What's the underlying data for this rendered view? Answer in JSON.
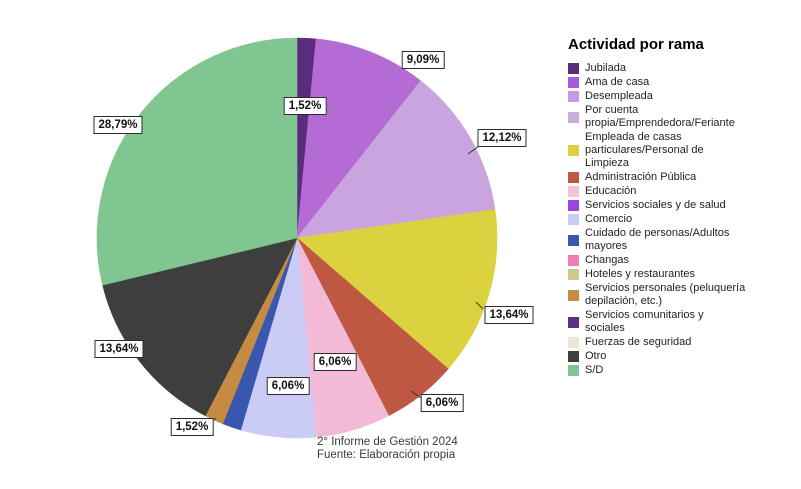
{
  "legend": {
    "title": "Actividad por rama",
    "items": [
      {
        "label": "Jubilada",
        "color": "#5B2C7E"
      },
      {
        "label": "Ama de casa",
        "color": "#A95BDB"
      },
      {
        "label": "Desempleada",
        "color": "#C49BE0"
      },
      {
        "label": "Por cuenta\npropia/Emprendedora/Feriante",
        "color": "#C9AEDC"
      },
      {
        "label": "Empleada de casas\nparticulares/Personal de\nLimpieza",
        "color": "#DCD13F"
      },
      {
        "label": "Administración Pública",
        "color": "#BF5843"
      },
      {
        "label": "Educación",
        "color": "#F2C2DB"
      },
      {
        "label": "Servicios sociales y de salud",
        "color": "#9D44DF"
      },
      {
        "label": "Comercio",
        "color": "#CBCCF6"
      },
      {
        "label": "Cuidado de personas/Adultos\nmayores",
        "color": "#3A57B0"
      },
      {
        "label": "Changas",
        "color": "#F07EB2"
      },
      {
        "label": "Hoteles y restaurantes",
        "color": "#CEC88D"
      },
      {
        "label": "Servicios personales (peluquería\ndepilación, etc.)",
        "color": "#C68B42"
      },
      {
        "label": "Servicios comunitarios y\nsociales",
        "color": "#5C2E87"
      },
      {
        "label": "Fuerzas de seguridad",
        "color": "#ECE8D5"
      },
      {
        "label": "Otro",
        "color": "#3E3E3E"
      },
      {
        "label": "S/D",
        "color": "#7FC690"
      }
    ]
  },
  "chart_data": {
    "type": "pie",
    "title": "Actividad por rama",
    "legend_position": "right",
    "start_angle_deg": 0,
    "direction": "clockwise",
    "slices": [
      {
        "category": "Jubilada",
        "value": 1.52,
        "display": "1,52%",
        "color": "#5B2C7E"
      },
      {
        "category": "Ama de casa",
        "value": 9.09,
        "display": "9,09%",
        "color": "#B46BD4"
      },
      {
        "category": "Desempleada",
        "value": 12.12,
        "display": "12,12%",
        "color": "#C9A4DE"
      },
      {
        "category": "Empleada de casas particulares/Personal de Limpieza",
        "value": 13.64,
        "display": "13,64%",
        "color": "#DCD13F"
      },
      {
        "category": "Administración Pública",
        "value": 6.06,
        "display": "6,06%",
        "color": "#BF5843"
      },
      {
        "category": "Educación",
        "value": 6.06,
        "display": "6,06%",
        "color": "#F2BAD6"
      },
      {
        "category": "Comercio",
        "value": 6.06,
        "display": "6,06%",
        "color": "#CBCCF6"
      },
      {
        "category": "Cuidado de personas/Adultos mayores",
        "value": 1.52,
        "display": "",
        "color": "#3A57B0"
      },
      {
        "category": "Servicios personales (peluquería depilación, etc.)",
        "value": 1.52,
        "display": "1,52%",
        "color": "#C68B42"
      },
      {
        "category": "Otro",
        "value": 13.64,
        "display": "13,64%",
        "color": "#3E3E3E"
      },
      {
        "category": "S/D",
        "value": 28.79,
        "display": "28,79%",
        "color": "#7FC690"
      }
    ]
  },
  "caption": {
    "line1": "2° Informe de Gestión 2024",
    "line2": "Fuente: Elaboración propia"
  }
}
